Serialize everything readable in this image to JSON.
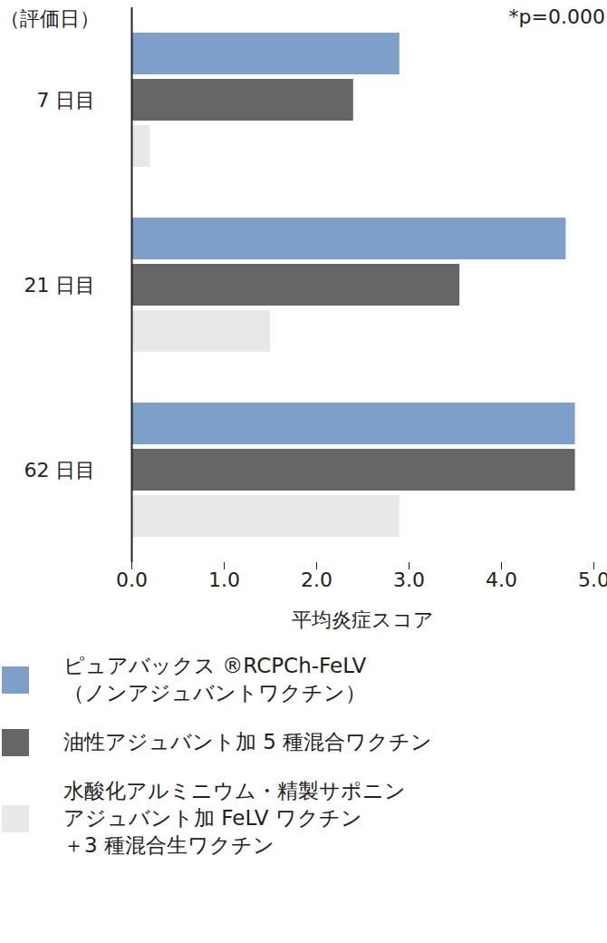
{
  "chart_data": {
    "type": "bar",
    "orientation": "horizontal",
    "ylabel": "（評価日）",
    "xlabel": "平均炎症スコア",
    "annotation": "*p=0.000",
    "categories": [
      "7 日目",
      "21 日目",
      "62 日目"
    ],
    "series": [
      {
        "name": "ピュアバックス ®RCPCh-FeLV\n（ノンアジュバントワクチン）",
        "color": "#7f9fcb",
        "values": [
          2.9,
          4.7,
          4.8
        ]
      },
      {
        "name": "油性アジュバント加 5 種混合ワクチン",
        "color": "#666666",
        "values": [
          2.4,
          3.55,
          4.8
        ]
      },
      {
        "name": "水酸化アルミニウム・精製サポニン\nアジュバント加 FeLV ワクチン\n＋3 種混合生ワクチン",
        "color": "#e8e8e8",
        "values": [
          0.2,
          1.5,
          2.9
        ]
      }
    ],
    "xlim": [
      0,
      5
    ],
    "xticks": [
      0,
      1,
      2,
      3,
      4,
      5
    ],
    "grid": false,
    "legend": "bottom"
  }
}
